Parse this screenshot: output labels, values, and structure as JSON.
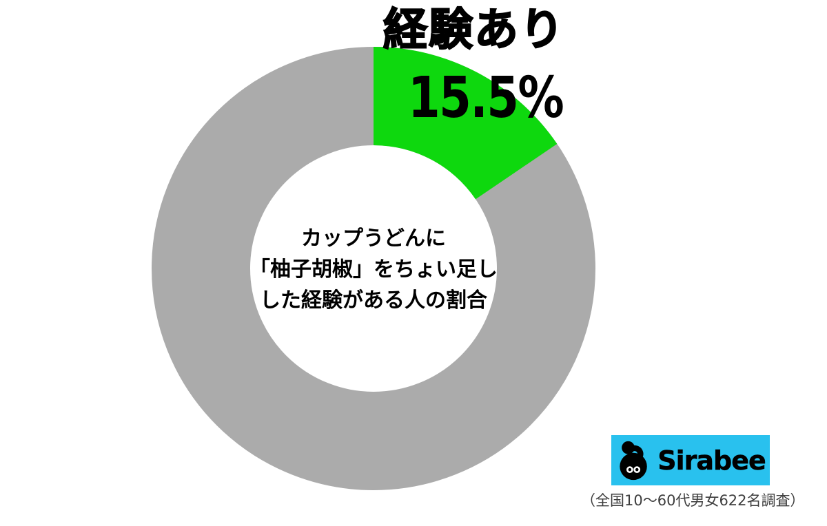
{
  "chart_data": {
    "type": "pie",
    "subtype": "donut",
    "title": "経験あり",
    "value_label": "15.5%",
    "direction": "clockwise",
    "start_angle_deg": 0,
    "hole_ratio": 0.55,
    "legend": "none",
    "slices": [
      {
        "label": "経験あり",
        "value_pct": 15.5,
        "color": "#0ed80e"
      },
      {
        "label": "",
        "value_pct": 84.5,
        "color": "#ababab"
      }
    ],
    "center_text_lines": [
      "カップうどんに",
      "「柚子胡椒」をちょい足し",
      "した経験がある人の割合"
    ]
  },
  "footer": {
    "logo_text": "Sirabee",
    "logo_bg_color": "#29c1ee",
    "caption": "（全国10〜60代男女622名調査）"
  }
}
